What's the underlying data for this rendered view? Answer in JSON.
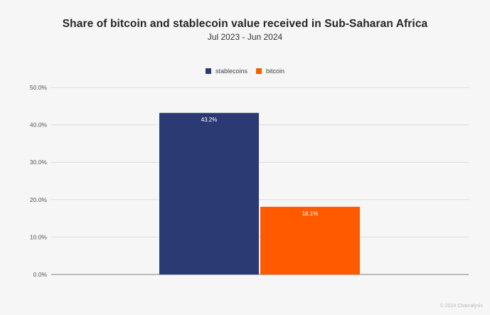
{
  "chart_data": {
    "type": "bar",
    "title": "Share of bitcoin and stablecoin value received in Sub-Saharan Africa",
    "subtitle": "Jul 2023 - Jun 2024",
    "xlabel": "",
    "ylabel": "",
    "ylim": [
      0,
      50
    ],
    "yticks": [
      0,
      10,
      20,
      30,
      40,
      50
    ],
    "ytick_labels": [
      "0.0%",
      "10.0%",
      "20.0%",
      "30.0%",
      "40.0%",
      "50.0%"
    ],
    "grid": true,
    "legend_position": "top-center",
    "series": [
      {
        "name": "stablecoins",
        "values": [
          43.2
        ],
        "color": "#2b3a73",
        "label": "43.2%"
      },
      {
        "name": "bitcoin",
        "values": [
          18.1
        ],
        "color": "#ff5a00",
        "label": "18.1%"
      }
    ],
    "categories": [
      ""
    ]
  },
  "footer": {
    "credit": "© 2024 Chainalysis"
  }
}
